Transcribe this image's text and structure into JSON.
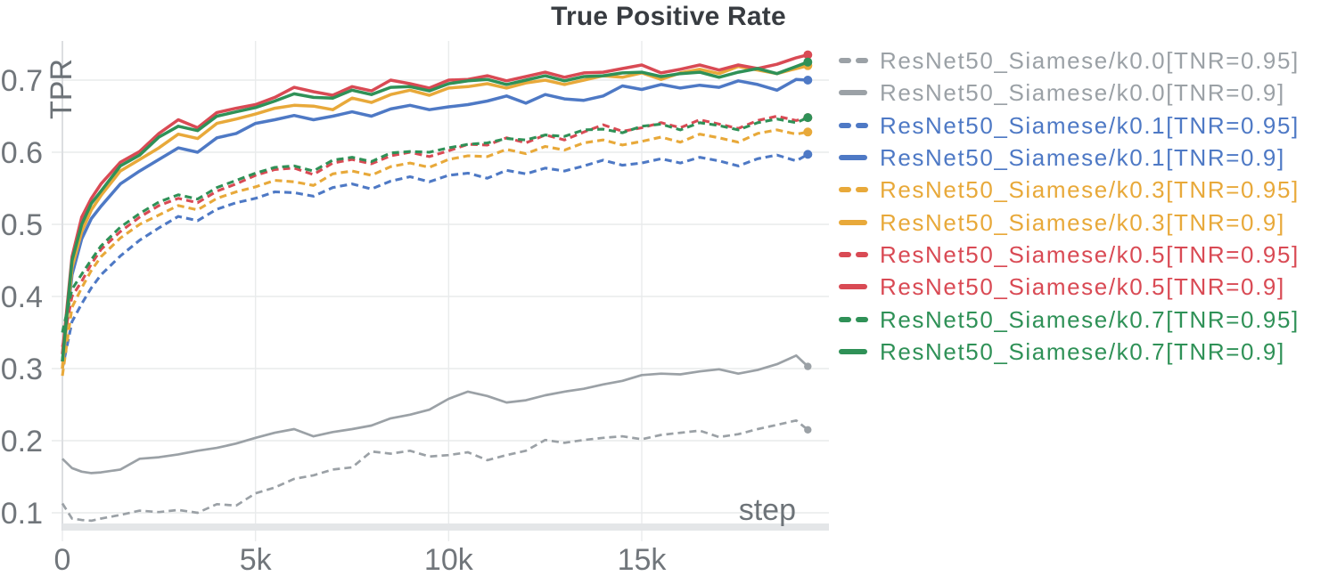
{
  "title": "True Positive Rate",
  "axes": {
    "y_label": "TPR",
    "x_label": "step",
    "y_ticks": [
      {
        "value": 0.1,
        "label": "0.1"
      },
      {
        "value": 0.2,
        "label": "0.2"
      },
      {
        "value": 0.3,
        "label": "0.3"
      },
      {
        "value": 0.4,
        "label": "0.4"
      },
      {
        "value": 0.5,
        "label": "0.5"
      },
      {
        "value": 0.6,
        "label": "0.6"
      },
      {
        "value": 0.7,
        "label": "0.7"
      }
    ],
    "x_ticks": [
      {
        "value": 0,
        "label": "0"
      },
      {
        "value": 5000,
        "label": "5k"
      },
      {
        "value": 10000,
        "label": "10k"
      },
      {
        "value": 15000,
        "label": "15k"
      }
    ],
    "x_range": [
      0,
      19850
    ],
    "y_range": [
      0.08,
      0.755
    ],
    "grid": true
  },
  "colors": {
    "gray": "#9ba1a6",
    "blue": "#4e79c5",
    "yellow": "#e8a93a",
    "red": "#d94a54",
    "green": "#2f9157",
    "grid": "#e9ebec",
    "axis": "#dcdee1",
    "band": "#e4e6e8",
    "title_text": "#383c41",
    "tick_text": "#71767b",
    "axis_label_text": "#6d7378"
  },
  "chart_data": {
    "type": "line",
    "x_name": "step",
    "y_name": "TPR",
    "x_steps": [
      0,
      250,
      500,
      750,
      1000,
      1500,
      2000,
      2500,
      3000,
      3500,
      4000,
      4500,
      5000,
      5500,
      6000,
      6500,
      7000,
      7500,
      8000,
      8500,
      9000,
      9500,
      10000,
      10500,
      11000,
      11500,
      12000,
      12500,
      13000,
      13500,
      14000,
      14500,
      15000,
      15500,
      16000,
      16500,
      17000,
      17500,
      18000,
      18500,
      19000,
      19300
    ],
    "series": [
      {
        "id": "k0.0-tnr0.95",
        "label": "ResNet50_Siamese/k0.0[TNR=0.95]",
        "color": "gray",
        "dashed": true,
        "end_dot": true,
        "values": [
          0.113,
          0.092,
          0.09,
          0.089,
          0.092,
          0.097,
          0.103,
          0.101,
          0.104,
          0.1,
          0.112,
          0.11,
          0.127,
          0.135,
          0.147,
          0.152,
          0.16,
          0.163,
          0.185,
          0.182,
          0.186,
          0.178,
          0.18,
          0.184,
          0.173,
          0.18,
          0.186,
          0.201,
          0.197,
          0.201,
          0.204,
          0.206,
          0.202,
          0.208,
          0.211,
          0.214,
          0.205,
          0.209,
          0.216,
          0.222,
          0.228,
          0.215
        ]
      },
      {
        "id": "k0.0-tnr0.9",
        "label": "ResNet50_Siamese/k0.0[TNR=0.9]",
        "color": "gray",
        "dashed": false,
        "end_dot": true,
        "values": [
          0.175,
          0.162,
          0.157,
          0.155,
          0.156,
          0.16,
          0.175,
          0.177,
          0.181,
          0.186,
          0.19,
          0.196,
          0.204,
          0.211,
          0.216,
          0.206,
          0.212,
          0.216,
          0.221,
          0.231,
          0.236,
          0.243,
          0.258,
          0.268,
          0.262,
          0.253,
          0.256,
          0.263,
          0.268,
          0.272,
          0.278,
          0.283,
          0.291,
          0.293,
          0.292,
          0.296,
          0.299,
          0.293,
          0.298,
          0.306,
          0.318,
          0.303
        ]
      },
      {
        "id": "k0.1-tnr0.95",
        "label": "ResNet50_Siamese/k0.1[TNR=0.95]",
        "color": "blue",
        "dashed": true,
        "end_dot": true,
        "values": [
          0.3,
          0.365,
          0.39,
          0.412,
          0.43,
          0.456,
          0.478,
          0.495,
          0.511,
          0.505,
          0.521,
          0.53,
          0.536,
          0.545,
          0.544,
          0.539,
          0.551,
          0.556,
          0.549,
          0.56,
          0.566,
          0.559,
          0.568,
          0.571,
          0.564,
          0.575,
          0.57,
          0.578,
          0.574,
          0.581,
          0.589,
          0.582,
          0.585,
          0.591,
          0.585,
          0.593,
          0.588,
          0.581,
          0.591,
          0.596,
          0.588,
          0.597
        ]
      },
      {
        "id": "k0.1-tnr0.9",
        "label": "ResNet50_Siamese/k0.1[TNR=0.9]",
        "color": "blue",
        "dashed": false,
        "end_dot": true,
        "values": [
          0.31,
          0.43,
          0.48,
          0.508,
          0.525,
          0.556,
          0.574,
          0.59,
          0.606,
          0.6,
          0.62,
          0.626,
          0.64,
          0.645,
          0.651,
          0.645,
          0.65,
          0.656,
          0.65,
          0.66,
          0.665,
          0.659,
          0.663,
          0.666,
          0.671,
          0.678,
          0.668,
          0.68,
          0.674,
          0.672,
          0.678,
          0.692,
          0.687,
          0.694,
          0.689,
          0.693,
          0.69,
          0.699,
          0.694,
          0.686,
          0.701,
          0.7
        ]
      },
      {
        "id": "k0.3-tnr0.95",
        "label": "ResNet50_Siamese/k0.3[TNR=0.95]",
        "color": "yellow",
        "dashed": true,
        "end_dot": true,
        "values": [
          0.29,
          0.385,
          0.412,
          0.436,
          0.455,
          0.481,
          0.5,
          0.513,
          0.526,
          0.52,
          0.536,
          0.545,
          0.552,
          0.561,
          0.559,
          0.554,
          0.57,
          0.574,
          0.568,
          0.58,
          0.585,
          0.579,
          0.59,
          0.595,
          0.594,
          0.604,
          0.598,
          0.608,
          0.603,
          0.613,
          0.617,
          0.61,
          0.615,
          0.621,
          0.614,
          0.625,
          0.62,
          0.614,
          0.626,
          0.631,
          0.625,
          0.628
        ]
      },
      {
        "id": "k0.3-tnr0.9",
        "label": "ResNet50_Siamese/k0.3[TNR=0.9]",
        "color": "yellow",
        "dashed": false,
        "end_dot": true,
        "values": [
          0.3,
          0.44,
          0.49,
          0.52,
          0.54,
          0.574,
          0.59,
          0.606,
          0.625,
          0.619,
          0.64,
          0.646,
          0.653,
          0.661,
          0.665,
          0.664,
          0.659,
          0.675,
          0.669,
          0.68,
          0.686,
          0.679,
          0.689,
          0.691,
          0.695,
          0.689,
          0.696,
          0.7,
          0.694,
          0.7,
          0.706,
          0.704,
          0.71,
          0.701,
          0.71,
          0.715,
          0.709,
          0.719,
          0.714,
          0.709,
          0.716,
          0.72
        ]
      },
      {
        "id": "k0.5-tnr0.95",
        "label": "ResNet50_Siamese/k0.5[TNR=0.95]",
        "color": "red",
        "dashed": true,
        "end_dot": true,
        "values": [
          0.33,
          0.4,
          0.421,
          0.445,
          0.465,
          0.49,
          0.51,
          0.526,
          0.536,
          0.53,
          0.546,
          0.556,
          0.568,
          0.576,
          0.578,
          0.569,
          0.585,
          0.59,
          0.584,
          0.595,
          0.6,
          0.594,
          0.602,
          0.611,
          0.61,
          0.62,
          0.613,
          0.624,
          0.617,
          0.628,
          0.638,
          0.629,
          0.634,
          0.641,
          0.634,
          0.645,
          0.639,
          0.633,
          0.644,
          0.65,
          0.644,
          0.648
        ]
      },
      {
        "id": "k0.5-tnr0.9",
        "label": "ResNet50_Siamese/k0.5[TNR=0.9]",
        "color": "red",
        "dashed": false,
        "end_dot": true,
        "values": [
          0.32,
          0.455,
          0.51,
          0.536,
          0.556,
          0.586,
          0.601,
          0.626,
          0.645,
          0.634,
          0.655,
          0.661,
          0.666,
          0.676,
          0.69,
          0.684,
          0.679,
          0.691,
          0.685,
          0.7,
          0.695,
          0.689,
          0.7,
          0.701,
          0.706,
          0.699,
          0.705,
          0.711,
          0.704,
          0.71,
          0.711,
          0.716,
          0.721,
          0.71,
          0.715,
          0.721,
          0.714,
          0.721,
          0.716,
          0.722,
          0.731,
          0.735
        ]
      },
      {
        "id": "k0.7-tnr0.95",
        "label": "ResNet50_Siamese/k0.7[TNR=0.95]",
        "color": "green",
        "dashed": true,
        "end_dot": true,
        "values": [
          0.35,
          0.41,
          0.431,
          0.451,
          0.47,
          0.496,
          0.515,
          0.531,
          0.541,
          0.535,
          0.551,
          0.561,
          0.571,
          0.579,
          0.581,
          0.574,
          0.589,
          0.593,
          0.587,
          0.599,
          0.601,
          0.6,
          0.606,
          0.611,
          0.613,
          0.619,
          0.617,
          0.624,
          0.622,
          0.631,
          0.632,
          0.627,
          0.636,
          0.639,
          0.631,
          0.641,
          0.637,
          0.631,
          0.641,
          0.646,
          0.641,
          0.648
        ]
      },
      {
        "id": "k0.7-tnr0.9",
        "label": "ResNet50_Siamese/k0.7[TNR=0.9]",
        "color": "green",
        "dashed": false,
        "end_dot": true,
        "values": [
          0.31,
          0.45,
          0.5,
          0.529,
          0.546,
          0.581,
          0.596,
          0.621,
          0.636,
          0.63,
          0.65,
          0.656,
          0.662,
          0.671,
          0.681,
          0.676,
          0.675,
          0.686,
          0.68,
          0.69,
          0.691,
          0.685,
          0.695,
          0.699,
          0.701,
          0.694,
          0.7,
          0.706,
          0.699,
          0.705,
          0.706,
          0.71,
          0.711,
          0.705,
          0.709,
          0.711,
          0.704,
          0.711,
          0.716,
          0.709,
          0.719,
          0.725
        ]
      }
    ]
  },
  "legend": {
    "note": "legend items mirror chart_data.series order"
  }
}
